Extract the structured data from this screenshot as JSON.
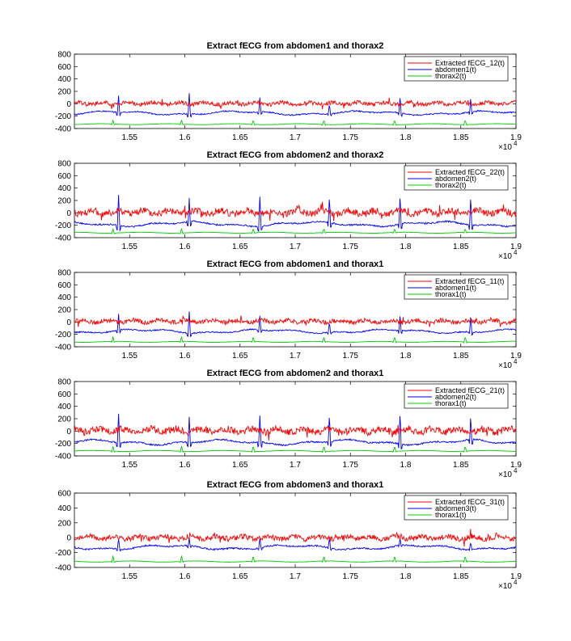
{
  "chart_data": [
    {
      "type": "line",
      "title": "Extract fECG from abdomen1 and thorax2",
      "xlim": [
        15000,
        19000
      ],
      "ylim": [
        -400,
        800
      ],
      "x_tick_labels": [
        "1.55",
        "1.6",
        "1.65",
        "1.7",
        "1.75",
        "1.8",
        "1.85",
        "1.9"
      ],
      "y_tick_labels": [
        "800",
        "600",
        "400",
        "200",
        "0",
        "-200",
        "-400"
      ],
      "x_exponent_base": "×10",
      "x_exponent_power": "4",
      "legend_position": "top-right",
      "series": [
        {
          "name": "Extracted fECG_12(t)",
          "color": "#ff0000",
          "baseline": 5,
          "amplitude": 45,
          "peaks": []
        },
        {
          "name": "abdomen1(t)",
          "color": "#0000ff",
          "baseline": -150,
          "amplitude": 40,
          "peaks": [
            {
              "x": 15400,
              "y": 130
            },
            {
              "x": 16040,
              "y": 170
            },
            {
              "x": 16680,
              "y": 100
            },
            {
              "x": 17310,
              "y": -10
            },
            {
              "x": 17950,
              "y": 130
            },
            {
              "x": 18590,
              "y": 110
            }
          ]
        },
        {
          "name": "thorax2(t)",
          "color": "#00cc00",
          "baseline": -330,
          "amplitude": 15,
          "peaks": [
            {
              "x": 15350,
              "y": -260
            },
            {
              "x": 15970,
              "y": -260
            },
            {
              "x": 16620,
              "y": -260
            },
            {
              "x": 17260,
              "y": -260
            },
            {
              "x": 17900,
              "y": -260
            },
            {
              "x": 18540,
              "y": -260
            }
          ]
        }
      ]
    },
    {
      "type": "line",
      "title": "Extract fECG from abdomen2 and thorax2",
      "xlim": [
        15000,
        19000
      ],
      "ylim": [
        -400,
        800
      ],
      "x_tick_labels": [
        "1.55",
        "1.6",
        "1.65",
        "1.7",
        "1.75",
        "1.8",
        "1.85",
        "1.9"
      ],
      "y_tick_labels": [
        "800",
        "600",
        "400",
        "200",
        "0",
        "-200",
        "-400"
      ],
      "x_exponent_base": "×10",
      "x_exponent_power": "4",
      "legend_position": "top-right",
      "series": [
        {
          "name": "Extracted fECG_22(t)",
          "color": "#ff0000",
          "baseline": 10,
          "amplitude": 80,
          "peaks": []
        },
        {
          "name": "abdomen2(t)",
          "color": "#0000ff",
          "baseline": -180,
          "amplitude": 50,
          "peaks": [
            {
              "x": 15400,
              "y": 290
            },
            {
              "x": 16040,
              "y": 240
            },
            {
              "x": 16680,
              "y": 260
            },
            {
              "x": 17310,
              "y": 280
            },
            {
              "x": 17950,
              "y": 300
            },
            {
              "x": 18590,
              "y": 280
            }
          ]
        },
        {
          "name": "thorax2(t)",
          "color": "#00cc00",
          "baseline": -320,
          "amplitude": 15,
          "peaks": [
            {
              "x": 15350,
              "y": -250
            },
            {
              "x": 15970,
              "y": -250
            },
            {
              "x": 16620,
              "y": -250
            },
            {
              "x": 17260,
              "y": -250
            },
            {
              "x": 17900,
              "y": -250
            },
            {
              "x": 18540,
              "y": -250
            }
          ]
        }
      ]
    },
    {
      "type": "line",
      "title": "Extract fECG from abdomen1 and thorax1",
      "xlim": [
        15000,
        19000
      ],
      "ylim": [
        -400,
        800
      ],
      "x_tick_labels": [
        "1.55",
        "1.6",
        "1.65",
        "1.7",
        "1.75",
        "1.8",
        "1.85",
        "1.9"
      ],
      "y_tick_labels": [
        "800",
        "600",
        "400",
        "200",
        "0",
        "-200",
        "-400"
      ],
      "x_exponent_base": "×10",
      "x_exponent_power": "4",
      "legend_position": "top-right",
      "series": [
        {
          "name": "Extracted fECG_11(t)",
          "color": "#ff0000",
          "baseline": 10,
          "amplitude": 50,
          "peaks": []
        },
        {
          "name": "abdomen1(t)",
          "color": "#0000ff",
          "baseline": -150,
          "amplitude": 40,
          "peaks": [
            {
              "x": 15400,
              "y": 130
            },
            {
              "x": 16040,
              "y": 170
            },
            {
              "x": 16680,
              "y": 100
            },
            {
              "x": 17310,
              "y": -10
            },
            {
              "x": 17950,
              "y": 130
            },
            {
              "x": 18590,
              "y": 110
            }
          ]
        },
        {
          "name": "thorax1(t)",
          "color": "#00cc00",
          "baseline": -320,
          "amplitude": 15,
          "peaks": [
            {
              "x": 15350,
              "y": -230
            },
            {
              "x": 15970,
              "y": -230
            },
            {
              "x": 16620,
              "y": -230
            },
            {
              "x": 17260,
              "y": -230
            },
            {
              "x": 17900,
              "y": -230
            },
            {
              "x": 18540,
              "y": -230
            }
          ]
        }
      ]
    },
    {
      "type": "line",
      "title": "Extract fECG from abdomen2 and thorax1",
      "xlim": [
        15000,
        19000
      ],
      "ylim": [
        -400,
        800
      ],
      "x_tick_labels": [
        "1.55",
        "1.6",
        "1.65",
        "1.7",
        "1.75",
        "1.8",
        "1.85",
        "1.9"
      ],
      "y_tick_labels": [
        "800",
        "600",
        "400",
        "200",
        "0",
        "-200",
        "-400"
      ],
      "x_exponent_base": "×10",
      "x_exponent_power": "4",
      "legend_position": "top-right",
      "series": [
        {
          "name": "Extracted fECG_21(t)",
          "color": "#ff0000",
          "baseline": 10,
          "amplitude": 80,
          "peaks": []
        },
        {
          "name": "abdomen2(t)",
          "color": "#0000ff",
          "baseline": -180,
          "amplitude": 50,
          "peaks": [
            {
              "x": 15400,
              "y": 280
            },
            {
              "x": 16040,
              "y": 230
            },
            {
              "x": 16680,
              "y": 250
            },
            {
              "x": 17310,
              "y": 280
            },
            {
              "x": 17950,
              "y": 310
            },
            {
              "x": 18590,
              "y": 270
            }
          ]
        },
        {
          "name": "thorax1(t)",
          "color": "#00cc00",
          "baseline": -320,
          "amplitude": 15,
          "peaks": [
            {
              "x": 15350,
              "y": -240
            },
            {
              "x": 15970,
              "y": -240
            },
            {
              "x": 16620,
              "y": -240
            },
            {
              "x": 17260,
              "y": -240
            },
            {
              "x": 17900,
              "y": -240
            },
            {
              "x": 18540,
              "y": -240
            }
          ]
        }
      ]
    },
    {
      "type": "line",
      "title": "Extract fECG from abdomen3 and thorax1",
      "xlim": [
        15000,
        19000
      ],
      "ylim": [
        -400,
        600
      ],
      "x_tick_labels": [
        "1.55",
        "1.6",
        "1.65",
        "1.7",
        "1.75",
        "1.8",
        "1.85",
        "1.9"
      ],
      "y_tick_labels": [
        "600",
        "400",
        "200",
        "0",
        "-200",
        "-400"
      ],
      "x_exponent_base": "×10",
      "x_exponent_power": "4",
      "legend_position": "top-right",
      "series": [
        {
          "name": "Extracted fECG_31(t)",
          "color": "#ff0000",
          "baseline": 0,
          "amplitude": 50,
          "peaks": []
        },
        {
          "name": "abdomen3(t)",
          "color": "#0000ff",
          "baseline": -130,
          "amplitude": 40,
          "peaks": [
            {
              "x": 15400,
              "y": -20
            },
            {
              "x": 16040,
              "y": 0
            },
            {
              "x": 16680,
              "y": -10
            },
            {
              "x": 17310,
              "y": 0
            },
            {
              "x": 17950,
              "y": 10
            },
            {
              "x": 18590,
              "y": -70
            }
          ]
        },
        {
          "name": "thorax1(t)",
          "color": "#00cc00",
          "baseline": -320,
          "amplitude": 15,
          "peaks": [
            {
              "x": 15350,
              "y": -240
            },
            {
              "x": 15970,
              "y": -240
            },
            {
              "x": 16620,
              "y": -240
            },
            {
              "x": 17260,
              "y": -240
            },
            {
              "x": 17900,
              "y": -240
            },
            {
              "x": 18540,
              "y": -240
            }
          ]
        }
      ]
    }
  ]
}
